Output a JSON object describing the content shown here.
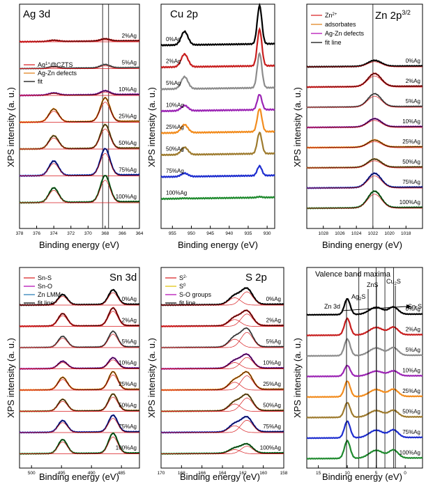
{
  "figure": {
    "shared_ylabel": "XPS intensity (a. u.)",
    "shared_xlabel": "Binding energy (eV)",
    "colors": {
      "0%Ag": "#000000",
      "2%Ag": "#c81e1e",
      "5%Ag": "#8c8c8c",
      "10%Ag": "#9b24b4",
      "25%Ag": "#f28c1e",
      "50%Ag": "#9e7b2e",
      "75%Ag": "#1e2ecf",
      "100%Ag": "#1f8a2e",
      "fit_red": "#d7191c",
      "fit_purple": "#b000b0",
      "fit_orange": "#e07a10",
      "fit_blue": "#1f78b4",
      "fit_black": "#000000"
    }
  },
  "chart_data": [
    {
      "id": "ag3d",
      "type": "line",
      "title": "Ag 3d",
      "xlabel": "Binding energy (eV)",
      "ylabel": "XPS intensity (a. u.)",
      "xlim": [
        378,
        364
      ],
      "xticks": [
        378,
        376,
        374,
        372,
        370,
        368,
        366,
        364
      ],
      "series_order": [
        "2%Ag",
        "5%Ag",
        "10%Ag",
        "25%Ag",
        "50%Ag",
        "75%Ag",
        "100%Ag"
      ],
      "peaks": [
        {
          "center": 374.0,
          "width": 0.55,
          "amp": 0.55
        },
        {
          "center": 368.0,
          "width": 0.55,
          "amp": 1.0
        }
      ],
      "amplitudes": {
        "2%Ag": 0.08,
        "5%Ag": 0.12,
        "10%Ag": 0.14,
        "25%Ag": 0.85,
        "50%Ag": 0.85,
        "75%Ag": 0.95,
        "100%Ag": 0.95
      },
      "legend": [
        "Ag1+@CZTS",
        "Ag-Zn defects",
        "fit"
      ],
      "legend_colors": [
        "#d7191c",
        "#e07a10",
        "#000000"
      ],
      "vlines": [
        368.3,
        367.6
      ]
    },
    {
      "id": "cu2p",
      "type": "line",
      "title": "Cu 2p",
      "xlabel": "Binding energy (eV)",
      "ylabel": "XPS intensity (a. u.)",
      "xlim": [
        958,
        928
      ],
      "xticks": [
        955,
        950,
        945,
        940,
        935,
        930
      ],
      "series_order": [
        "0%Ag",
        "2%Ag",
        "5%Ag",
        "10%Ag",
        "25%Ag",
        "50%Ag",
        "75%Ag",
        "100%Ag"
      ],
      "peaks": [
        {
          "center": 951.8,
          "width": 0.9,
          "amp": 0.35
        },
        {
          "center": 932.0,
          "width": 0.6,
          "amp": 1.0
        }
      ],
      "amplitudes": {
        "0%Ag": 1.0,
        "2%Ag": 0.95,
        "5%Ag": 0.9,
        "10%Ag": 0.4,
        "25%Ag": 0.6,
        "50%Ag": 0.55,
        "75%Ag": 0.25,
        "100%Ag": 0.02
      },
      "legend": [],
      "legend_colors": []
    },
    {
      "id": "zn2p",
      "type": "line",
      "title": "Zn 2p",
      "title_sup": "3/2",
      "xlabel": "Binding energy (eV)",
      "ylabel": "XPS intensity (a. u.)",
      "xlim": [
        1030,
        1016
      ],
      "xticks": [
        1028,
        1026,
        1024,
        1022,
        1020,
        1018
      ],
      "series_order": [
        "0%Ag",
        "2%Ag",
        "5%Ag",
        "10%Ag",
        "25%Ag",
        "50%Ag",
        "75%Ag",
        "100%Ag"
      ],
      "peaks": [
        {
          "center": 1021.8,
          "width": 0.8,
          "amp": 1.0
        }
      ],
      "amplitudes": {
        "0%Ag": 0.25,
        "2%Ag": 0.55,
        "5%Ag": 0.55,
        "10%Ag": 0.35,
        "25%Ag": 0.3,
        "50%Ag": 0.35,
        "75%Ag": 0.6,
        "100%Ag": 0.7
      },
      "legend": [
        "Zn2+",
        "adsorbates",
        "Ag-Zn defects",
        "fit line"
      ],
      "legend_colors": [
        "#d7191c",
        "#e07a10",
        "#b000b0",
        "#000000"
      ],
      "vlines": [
        1022.0
      ]
    },
    {
      "id": "sn3d",
      "type": "line",
      "title": "Sn 3d",
      "xlabel": "Binding energy (eV)",
      "ylabel": "XPS intensity (a. u.)",
      "xlim": [
        502,
        482
      ],
      "xticks": [
        500,
        495,
        490,
        485
      ],
      "series_order": [
        "0%Ag",
        "2%Ag",
        "5%Ag",
        "10%Ag",
        "25%Ag",
        "50%Ag",
        "75%Ag",
        "100%Ag"
      ],
      "peaks": [
        {
          "center": 494.8,
          "width": 0.75,
          "amp": 0.7
        },
        {
          "center": 486.4,
          "width": 0.75,
          "amp": 1.0
        }
      ],
      "amplitudes": {
        "0%Ag": 0.7,
        "2%Ag": 0.85,
        "5%Ag": 0.75,
        "10%Ag": 0.5,
        "25%Ag": 0.85,
        "50%Ag": 0.8,
        "75%Ag": 0.8,
        "100%Ag": 0.95
      },
      "legend": [
        "Sn-S",
        "Sn-O",
        "Zn LMM",
        "fit line"
      ],
      "legend_colors": [
        "#d7191c",
        "#b000b0",
        "#1f78b4",
        "#000000"
      ]
    },
    {
      "id": "s2p",
      "type": "line",
      "title": "S 2p",
      "xlabel": "Binding energy (eV)",
      "ylabel": "XPS intensity (a. u.)",
      "xlim": [
        170,
        158
      ],
      "xticks": [
        170,
        168,
        166,
        164,
        162,
        160,
        158
      ],
      "series_order": [
        "0%Ag",
        "2%Ag",
        "5%Ag",
        "10%Ag",
        "25%Ag",
        "50%Ag",
        "75%Ag",
        "100%Ag"
      ],
      "peaks": [
        {
          "center": 162.8,
          "width": 0.55,
          "amp": 0.55
        },
        {
          "center": 161.6,
          "width": 0.55,
          "amp": 1.0
        }
      ],
      "amplitudes": {
        "0%Ag": 0.7,
        "2%Ag": 0.65,
        "5%Ag": 0.8,
        "10%Ag": 0.6,
        "25%Ag": 0.75,
        "50%Ag": 0.7,
        "75%Ag": 0.65,
        "100%Ag": 0.4
      },
      "legend": [
        "S2-",
        "S0",
        "S-O groups",
        "fit line"
      ],
      "legend_colors": [
        "#d7191c",
        "#e0c000",
        "#b000b0",
        "#000000"
      ]
    },
    {
      "id": "vbm",
      "type": "line",
      "title": "Valence band maxima",
      "xlabel": "Binding energy (eV)",
      "ylabel": "XPS intensity (a. u.)",
      "xlim": [
        17,
        -3
      ],
      "xticks": [
        15,
        10,
        5,
        0
      ],
      "series_order": [
        "0%Ag",
        "2%Ag",
        "5%Ag",
        "10%Ag",
        "25%Ag",
        "50%Ag",
        "75%Ag",
        "100%Ag"
      ],
      "peaks": [
        {
          "center": 10.0,
          "width": 0.5,
          "amp": 1.0
        },
        {
          "center": 5.0,
          "width": 1.2,
          "amp": 0.45
        },
        {
          "center": 2.0,
          "width": 0.8,
          "amp": 0.45
        }
      ],
      "amplitudes": {
        "0%Ag": 0.8,
        "2%Ag": 0.85,
        "5%Ag": 0.85,
        "10%Ag": 0.55,
        "25%Ag": 0.8,
        "50%Ag": 0.75,
        "75%Ag": 0.85,
        "100%Ag": 0.9
      },
      "annotations": [
        "Zn 3d",
        "Ag2S",
        "ZnS",
        "Cu2S",
        "Sn-S"
      ],
      "vlines": [
        8.0,
        5.0,
        3.5,
        2.0
      ]
    }
  ],
  "panel_texts": {
    "ag3d": {
      "legend_1": "Ag",
      "legend_1_sup": "1+",
      "legend_1_rest": "@CZTS",
      "legend_2": "Ag-Zn defects",
      "legend_3": "fit"
    },
    "zn2p": {
      "legend_1": "Zn",
      "legend_1_sup": "2+",
      "legend_2": "adsorbates",
      "legend_3": "Ag-Zn defects",
      "legend_4": "fit line"
    },
    "sn3d": {
      "legend_1": "Sn-S",
      "legend_2": "Sn-O",
      "legend_3": "Zn LMM",
      "legend_4": "fit line"
    },
    "s2p": {
      "legend_1": "S",
      "legend_1_sup": "2-",
      "legend_2": "S",
      "legend_2_sup": "0",
      "legend_3": "S-O groups",
      "legend_4": "fit line"
    },
    "vbm": {
      "ann_zn3d": "Zn 3d",
      "ann_ag2s": "Ag",
      "ann_ag2s_sub": "2",
      "ann_ag2s_rest": "S",
      "ann_zns": "ZnS",
      "ann_cu2s": "Cu",
      "ann_cu2s_sub": "2",
      "ann_cu2s_rest": "S",
      "ann_sns": "Sn-S"
    }
  }
}
